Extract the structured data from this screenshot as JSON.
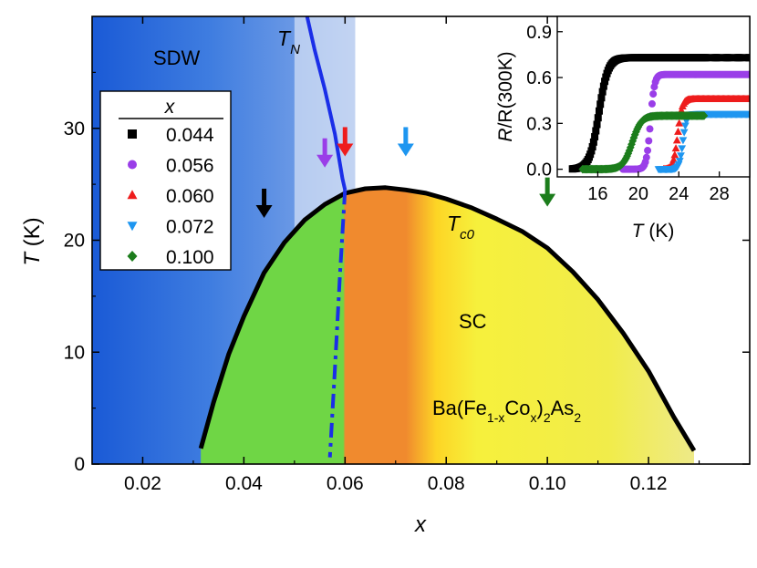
{
  "chart_data": {
    "type": "phase-diagram",
    "xlabel": "x",
    "ylabel": "T",
    "ylabel_unit": "(K)",
    "xlim": [
      0.01,
      0.14
    ],
    "ylim": [
      0,
      40
    ],
    "xticks": [
      0.02,
      0.04,
      0.06,
      0.08,
      0.1,
      0.12
    ],
    "xtick_labels": [
      "0.02",
      "0.04",
      "0.06",
      "0.08",
      "0.10",
      "0.12"
    ],
    "yticks": [
      0,
      10,
      20,
      30
    ],
    "ytick_labels": [
      "0",
      "10",
      "20",
      "30"
    ],
    "regions": {
      "sdw": "SDW",
      "sc": "SC",
      "compound_prefix": "Ba(Fe",
      "compound_sub1": "1-x",
      "compound_mid": "Co",
      "compound_sub2": "x",
      "compound_close": ")",
      "compound_sub3": "2",
      "compound_as": "As",
      "compound_sub4": "2"
    },
    "tn_label": {
      "main": "T",
      "sub": "N"
    },
    "tc_label": {
      "main": "T",
      "sub": "c0"
    },
    "tn_line_solid": [
      [
        0.0525,
        40.0
      ],
      [
        0.054,
        37.0
      ],
      [
        0.056,
        33.5
      ],
      [
        0.058,
        29.5
      ],
      [
        0.0595,
        25.5
      ],
      [
        0.06,
        24.5
      ]
    ],
    "tn_line_dashed": [
      [
        0.06,
        24.5
      ],
      [
        0.059,
        17.0
      ],
      [
        0.058,
        8.5
      ],
      [
        0.057,
        0.6
      ]
    ],
    "tc_dome": [
      [
        0.0315,
        1.4
      ],
      [
        0.034,
        5.5
      ],
      [
        0.037,
        9.8
      ],
      [
        0.04,
        13.2
      ],
      [
        0.044,
        17.1
      ],
      [
        0.048,
        19.8
      ],
      [
        0.052,
        21.8
      ],
      [
        0.056,
        23.2
      ],
      [
        0.06,
        24.2
      ],
      [
        0.064,
        24.6
      ],
      [
        0.068,
        24.7
      ],
      [
        0.072,
        24.5
      ],
      [
        0.076,
        24.2
      ],
      [
        0.08,
        23.7
      ],
      [
        0.085,
        22.9
      ],
      [
        0.09,
        21.9
      ],
      [
        0.095,
        20.8
      ],
      [
        0.1,
        19.3
      ],
      [
        0.105,
        17.2
      ],
      [
        0.11,
        14.7
      ],
      [
        0.115,
        11.7
      ],
      [
        0.12,
        8.3
      ],
      [
        0.125,
        4.2
      ],
      [
        0.129,
        1.2
      ]
    ],
    "sc_color_zones": [
      {
        "from": 0.0315,
        "to": 0.06,
        "color": "#6fd645"
      },
      {
        "from": 0.06,
        "to": 0.073,
        "color": "#f08a2e"
      },
      {
        "from": 0.073,
        "to": 0.129,
        "color": "#f6f03c"
      }
    ],
    "arrows": [
      {
        "x": 0.044,
        "y": 22.0,
        "color": "#000000"
      },
      {
        "x": 0.056,
        "y": 26.5,
        "color": "#9a3ee8"
      },
      {
        "x": 0.06,
        "y": 27.5,
        "color": "#ee1c1c"
      },
      {
        "x": 0.072,
        "y": 27.5,
        "color": "#1e96f0"
      },
      {
        "x": 0.1,
        "y": 23.0,
        "color": "#1c7d1c"
      }
    ],
    "legend": {
      "title": "x",
      "entries": [
        {
          "label": "0.044",
          "color": "#000000",
          "marker": "square"
        },
        {
          "label": "0.056",
          "color": "#9a3ee8",
          "marker": "circle"
        },
        {
          "label": "0.060",
          "color": "#ee1c1c",
          "marker": "triangle-up"
        },
        {
          "label": "0.072",
          "color": "#1e96f0",
          "marker": "triangle-down"
        },
        {
          "label": "0.100",
          "color": "#1c7d1c",
          "marker": "diamond"
        }
      ]
    },
    "inset": {
      "type": "scatter",
      "xlabel": "T",
      "xlabel_unit": "(K)",
      "ylabel_main": "R",
      "ylabel_rest": "/R(300K)",
      "xlim": [
        12,
        31
      ],
      "ylim": [
        -0.05,
        1.0
      ],
      "xticks": [
        16,
        20,
        24,
        28
      ],
      "xtick_labels": [
        "16",
        "20",
        "24",
        "28"
      ],
      "yticks": [
        0.0,
        0.3,
        0.6,
        0.9
      ],
      "ytick_labels": [
        "0.0",
        "0.3",
        "0.6",
        "0.9"
      ],
      "series": [
        {
          "name": "0.044",
          "color": "#000000",
          "marker": "square",
          "tc": 16.1,
          "width": 0.45,
          "plateau": 0.73,
          "start": 13.5,
          "end": 31.0
        },
        {
          "name": "0.056",
          "color": "#9a3ee8",
          "marker": "circle",
          "tc": 21.2,
          "width": 0.2,
          "plateau": 0.62,
          "start": 18.5,
          "end": 31.0
        },
        {
          "name": "0.060",
          "color": "#ee1c1c",
          "marker": "triangle-up",
          "tc": 23.9,
          "width": 0.22,
          "plateau": 0.46,
          "start": 22.5,
          "end": 31.0
        },
        {
          "name": "0.072",
          "color": "#1e96f0",
          "marker": "triangle-down",
          "tc": 24.4,
          "width": 0.18,
          "plateau": 0.36,
          "start": 22.0,
          "end": 31.0
        },
        {
          "name": "0.100",
          "color": "#1c7d1c",
          "marker": "diamond",
          "tc": 19.4,
          "width": 0.45,
          "plateau": 0.35,
          "start": 14.5,
          "end": 26.5
        }
      ]
    }
  }
}
